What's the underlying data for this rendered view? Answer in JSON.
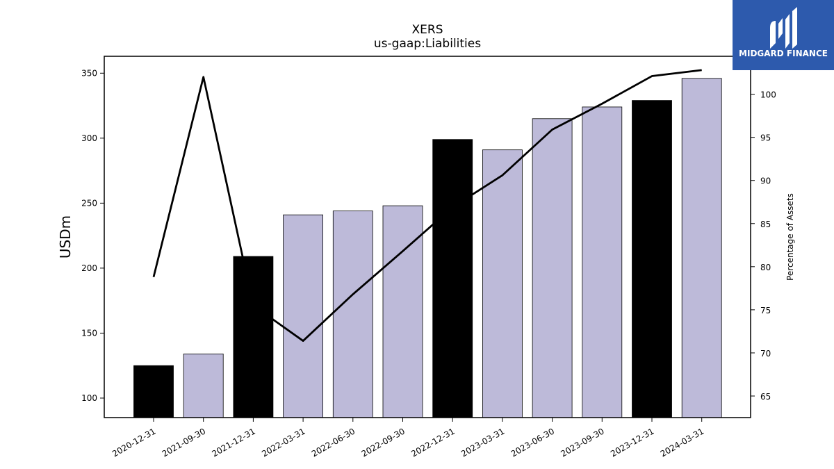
{
  "chart_data": {
    "type": "bar",
    "title": "XERS",
    "subtitle": "us-gaap:Liabilities",
    "ylabel": "USDm",
    "y2label": "Percentage of Assets",
    "categories": [
      "2020-12-31",
      "2021-09-30",
      "2021-12-31",
      "2022-03-31",
      "2022-06-30",
      "2022-09-30",
      "2022-12-31",
      "2023-03-31",
      "2023-06-30",
      "2023-09-30",
      "2023-12-31",
      "2024-03-31"
    ],
    "series": [
      {
        "type": "bar",
        "axis": "left",
        "values": [
          125,
          134,
          209,
          241,
          244,
          248,
          299,
          291,
          315,
          324,
          329,
          346
        ],
        "colors": [
          "#000000",
          "#bdbad9",
          "#000000",
          "#bdbad9",
          "#bdbad9",
          "#bdbad9",
          "#000000",
          "#bdbad9",
          "#bdbad9",
          "#bdbad9",
          "#000000",
          "#bdbad9"
        ]
      },
      {
        "type": "line",
        "axis": "right",
        "color": "#000000",
        "values": [
          78.8,
          102.0,
          75.5,
          71.4,
          76.8,
          81.8,
          86.9,
          90.6,
          95.9,
          98.9,
          102.1,
          102.8
        ]
      }
    ],
    "ylim": [
      85,
      363
    ],
    "y2lim": [
      62.5,
      104.4
    ],
    "yticks": [
      100,
      150,
      200,
      250,
      300,
      350
    ],
    "y2ticks": [
      65,
      70,
      75,
      80,
      85,
      90,
      95,
      100
    ],
    "grid": false
  },
  "logo": {
    "text": "MIDGARD FINANCE",
    "background": "#2d5aad"
  }
}
